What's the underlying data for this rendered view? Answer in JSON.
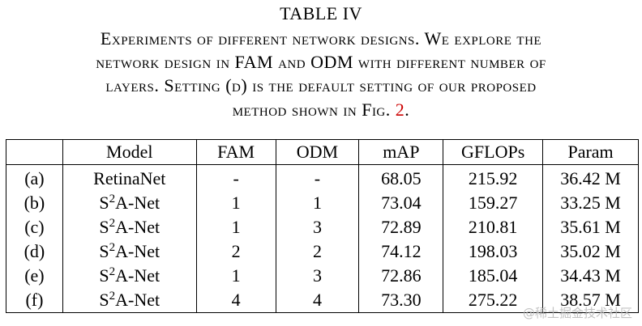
{
  "caption": {
    "table_label": "TABLE IV",
    "line1": "Experiments of different network designs. We explore the",
    "line2": "network design in FAM and ODM with different number of",
    "line3": "layers. Setting (d) is the default setting of our proposed",
    "line4_prefix": "method shown in Fig. ",
    "line4_ref": "2",
    "line4_suffix": "."
  },
  "table": {
    "headers": [
      "",
      "Model",
      "FAM",
      "ODM",
      "mAP",
      "GFLOPs",
      "Param"
    ],
    "rows": [
      {
        "setting": "(a)",
        "model_base": "RetinaNet",
        "model_sup": "",
        "model_rest": "",
        "fam": "-",
        "odm": "-",
        "map": "68.05",
        "gflops": "215.92",
        "param": "36.42 M"
      },
      {
        "setting": "(b)",
        "model_base": "S",
        "model_sup": "2",
        "model_rest": "A-Net",
        "fam": "1",
        "odm": "1",
        "map": "73.04",
        "gflops": "159.27",
        "param": "33.25 M"
      },
      {
        "setting": "(c)",
        "model_base": "S",
        "model_sup": "2",
        "model_rest": "A-Net",
        "fam": "1",
        "odm": "3",
        "map": "72.89",
        "gflops": "210.81",
        "param": "35.61 M"
      },
      {
        "setting": "(d)",
        "model_base": "S",
        "model_sup": "2",
        "model_rest": "A-Net",
        "fam": "2",
        "odm": "2",
        "map": "74.12",
        "gflops": "198.03",
        "param": "35.02 M"
      },
      {
        "setting": "(e)",
        "model_base": "S",
        "model_sup": "2",
        "model_rest": "A-Net",
        "fam": "1",
        "odm": "3",
        "map": "72.86",
        "gflops": "185.04",
        "param": "34.43 M"
      },
      {
        "setting": "(f)",
        "model_base": "S",
        "model_sup": "2",
        "model_rest": "A-Net",
        "fam": "4",
        "odm": "4",
        "map": "73.30",
        "gflops": "275.22",
        "param": "38.57 M"
      }
    ]
  },
  "watermark": "@稀土掘金技术社区",
  "colors": {
    "reference": "#cc0000",
    "text": "#000000",
    "watermark": "#b8b8b8"
  }
}
